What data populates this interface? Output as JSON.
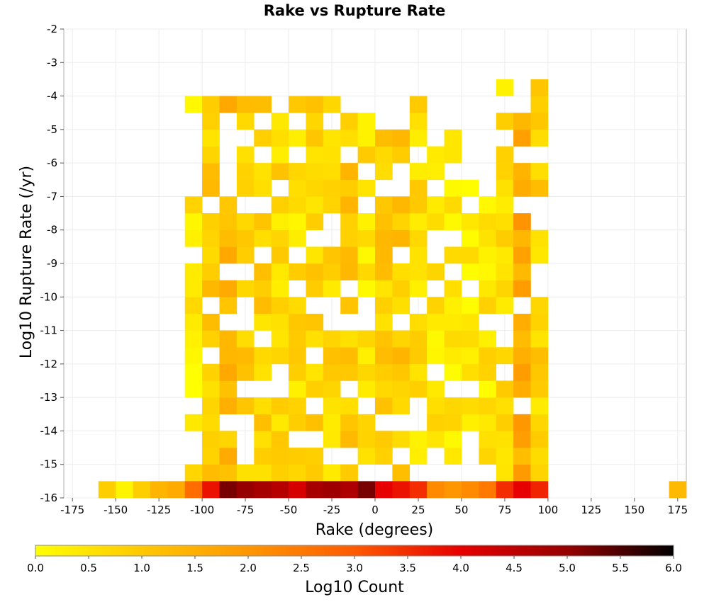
{
  "chart_data": {
    "type": "heatmap",
    "title": "Rake vs Rupture Rate",
    "xlabel": "Rake (degrees)",
    "ylabel": "Log10 Rupture Rate (/yr)",
    "xlim": [
      -180,
      180
    ],
    "ylim": [
      -16,
      -2
    ],
    "x_ticks": [
      -175,
      -150,
      -125,
      -100,
      -75,
      -50,
      -25,
      0,
      25,
      50,
      75,
      100,
      125,
      150,
      175
    ],
    "y_ticks": [
      -2,
      -3,
      -4,
      -5,
      -6,
      -7,
      -8,
      -9,
      -10,
      -11,
      -12,
      -13,
      -14,
      -15,
      -16
    ],
    "bin_width_x": 10,
    "bin_height_y": 0.5,
    "grid": true,
    "colorbar": {
      "label": "Log10 Count",
      "min": 0.0,
      "max": 6.0,
      "ticks": [
        "0.0",
        "0.5",
        "1.0",
        "1.5",
        "2.0",
        "2.5",
        "3.0",
        "3.5",
        "4.0",
        "4.5",
        "5.0",
        "5.5",
        "6.0"
      ],
      "stops": [
        "#ffff00",
        "#ffc800",
        "#ff9600",
        "#ff5a00",
        "#e60000",
        "#960000",
        "#000000"
      ]
    },
    "bottom_row": {
      "y": -16,
      "cells": [
        {
          "x": -155,
          "v": 0.9
        },
        {
          "x": -145,
          "v": 0.2
        },
        {
          "x": -135,
          "v": 0.9
        },
        {
          "x": -125,
          "v": 1.4
        },
        {
          "x": -115,
          "v": 1.6
        },
        {
          "x": -105,
          "v": 2.7
        },
        {
          "x": -95,
          "v": 3.8
        },
        {
          "x": -85,
          "v": 5.2
        },
        {
          "x": -75,
          "v": 5.0
        },
        {
          "x": -65,
          "v": 4.8
        },
        {
          "x": -55,
          "v": 4.6
        },
        {
          "x": -45,
          "v": 4.2
        },
        {
          "x": -35,
          "v": 4.8
        },
        {
          "x": -25,
          "v": 4.9
        },
        {
          "x": -15,
          "v": 4.7
        },
        {
          "x": -5,
          "v": 5.2
        },
        {
          "x": 5,
          "v": 4.0
        },
        {
          "x": 15,
          "v": 3.8
        },
        {
          "x": 25,
          "v": 3.5
        },
        {
          "x": 35,
          "v": 2.2
        },
        {
          "x": 45,
          "v": 2.0
        },
        {
          "x": 55,
          "v": 2.2
        },
        {
          "x": 65,
          "v": 2.5
        },
        {
          "x": 75,
          "v": 3.5
        },
        {
          "x": 85,
          "v": 4.0
        },
        {
          "x": 95,
          "v": 3.6
        },
        {
          "x": 175,
          "v": 1.3
        }
      ]
    },
    "columns": [
      {
        "x": -105,
        "ranges": [
          [
            -15.5,
            -7.0
          ],
          [
            -4.5,
            -4.0
          ]
        ],
        "v": 0.4
      },
      {
        "x": -95,
        "ranges": [
          [
            -15.5,
            -4.0
          ]
        ],
        "v": 0.9
      },
      {
        "x": -85,
        "ranges": [
          [
            -15.5,
            -3.5
          ]
        ],
        "v": 1.2
      },
      {
        "x": -75,
        "ranges": [
          [
            -15.5,
            -4.0
          ]
        ],
        "v": 0.9
      },
      {
        "x": -65,
        "ranges": [
          [
            -15.5,
            -4.0
          ]
        ],
        "v": 0.8
      },
      {
        "x": -55,
        "ranges": [
          [
            -15.5,
            -4.0
          ]
        ],
        "v": 0.7
      },
      {
        "x": -45,
        "ranges": [
          [
            -15.5,
            -3.5
          ]
        ],
        "v": 0.6
      },
      {
        "x": -35,
        "ranges": [
          [
            -15.5,
            -4.0
          ]
        ],
        "v": 0.8
      },
      {
        "x": -25,
        "ranges": [
          [
            -15.5,
            -4.0
          ]
        ],
        "v": 0.8
      },
      {
        "x": -15,
        "ranges": [
          [
            -15.5,
            -4.0
          ]
        ],
        "v": 1.0
      },
      {
        "x": -5,
        "ranges": [
          [
            -15.5,
            -4.5
          ]
        ],
        "v": 0.5
      },
      {
        "x": 5,
        "ranges": [
          [
            -15.5,
            -5.0
          ]
        ],
        "v": 0.9
      },
      {
        "x": 15,
        "ranges": [
          [
            -15.5,
            -5.0
          ]
        ],
        "v": 1.0
      },
      {
        "x": 25,
        "ranges": [
          [
            -15.0,
            -4.0
          ]
        ],
        "v": 0.6
      },
      {
        "x": 35,
        "ranges": [
          [
            -14.5,
            -5.0
          ]
        ],
        "v": 0.5
      },
      {
        "x": 45,
        "ranges": [
          [
            -15.0,
            -5.0
          ]
        ],
        "v": 0.4
      },
      {
        "x": 55,
        "ranges": [
          [
            -15.0,
            -6.0
          ]
        ],
        "v": 0.4
      },
      {
        "x": 65,
        "ranges": [
          [
            -15.5,
            -7.0
          ]
        ],
        "v": 0.5
      },
      {
        "x": 75,
        "ranges": [
          [
            -15.5,
            -3.5
          ]
        ],
        "v": 0.6
      },
      {
        "x": 85,
        "ranges": [
          [
            -15.5,
            -4.5
          ]
        ],
        "v": 1.6
      },
      {
        "x": 95,
        "ranges": [
          [
            -15.5,
            -3.5
          ]
        ],
        "v": 0.8
      }
    ]
  }
}
